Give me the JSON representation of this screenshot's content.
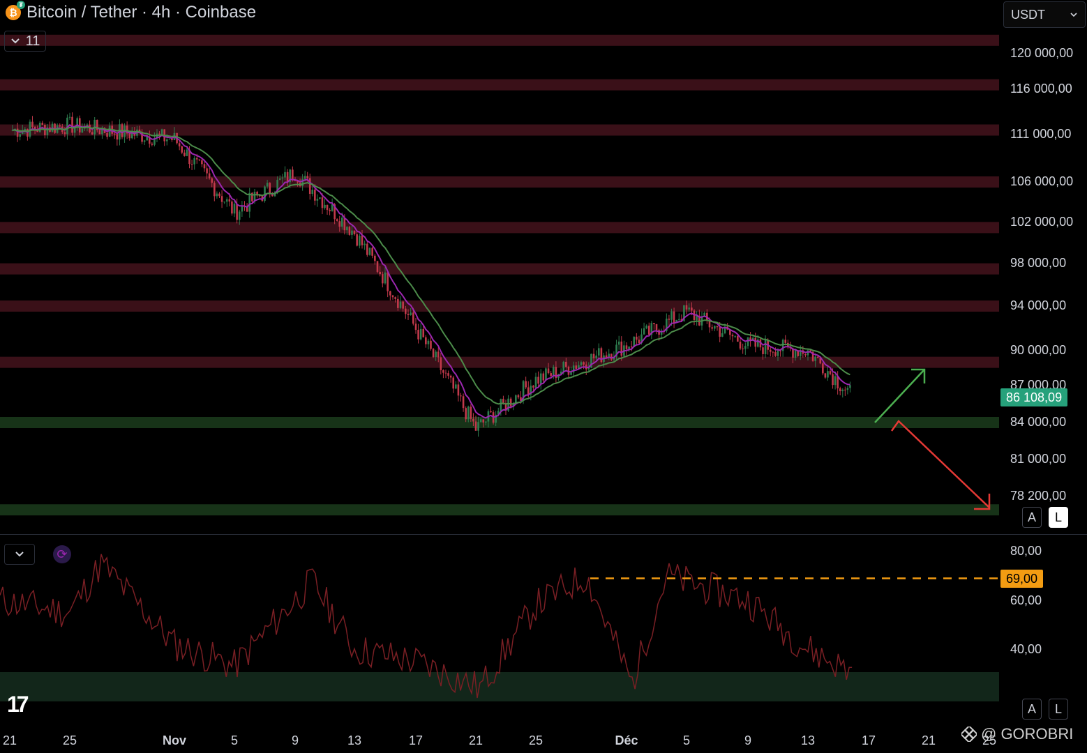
{
  "header": {
    "title": "Bitcoin / Tether · 4h · Coinbase",
    "collapse_count": "11",
    "currency": "USDT"
  },
  "price_axis": {
    "ticks": [
      "120 000,00",
      "116 000,00",
      "111 000,00",
      "106 000,00",
      "102 000,00",
      "98 000,00",
      "94 000,00",
      "90 000,00",
      "87 000,00",
      "84 000,00",
      "81 000,00",
      "78 200,00"
    ],
    "current_price": "86 108,09"
  },
  "rsi_axis": {
    "ticks": [
      "80,00",
      "60,00",
      "40,00"
    ],
    "level_label": "69,00"
  },
  "date_axis": {
    "ticks": [
      "21",
      "25",
      "Nov",
      "5",
      "9",
      "13",
      "17",
      "21",
      "25",
      "Déc",
      "5",
      "9",
      "13",
      "17",
      "21",
      "25"
    ]
  },
  "buttons": {
    "auto": "A",
    "log": "L"
  },
  "watermark": "@ GOROBRI",
  "colors": {
    "resistance": "#3a1018",
    "support": "#173318",
    "up_candle": "#2e7d4f",
    "down_candle": "#c2394b",
    "ema_fast": "#9c27b0",
    "ema_slow": "#4c8c4a",
    "rsi_line": "#7a1f24",
    "price_badge": "#26a17b",
    "rsi_badge": "#f39c12"
  },
  "chart_data": {
    "type": "candlestick",
    "title": "Bitcoin / Tether · 4h · Coinbase",
    "ylim": [
      77000,
      122000
    ],
    "x": [
      "Oct 21",
      "Oct 25",
      "Nov 1",
      "Nov 5",
      "Nov 9",
      "Nov 13",
      "Nov 17",
      "Nov 21",
      "Nov 25",
      "Dec 1",
      "Dec 5",
      "Dec 9",
      "Dec 13",
      "Dec 15"
    ],
    "close": [
      111500,
      112000,
      110500,
      103000,
      107000,
      101000,
      92000,
      83500,
      87500,
      90500,
      93500,
      90500,
      90000,
      86108
    ],
    "resistance_levels": [
      121500,
      116500,
      111500,
      106000,
      101500,
      97500,
      94000,
      89000
    ],
    "support_levels": [
      84000,
      77500
    ],
    "rsi": {
      "ylim": [
        10,
        85
      ],
      "level": 69,
      "x": [
        "Oct 21",
        "Oct 25",
        "Oct 28",
        "Nov 1",
        "Nov 5",
        "Nov 9",
        "Nov 13",
        "Nov 17",
        "Nov 21",
        "Nov 25",
        "Dec 1",
        "Dec 3",
        "Dec 5",
        "Dec 9",
        "Dec 13",
        "Dec 15"
      ],
      "values": [
        60,
        55,
        75,
        42,
        33,
        68,
        40,
        35,
        24,
        58,
        70,
        26,
        70,
        60,
        40,
        30
      ],
      "oversold_zone": [
        18,
        30
      ]
    }
  }
}
